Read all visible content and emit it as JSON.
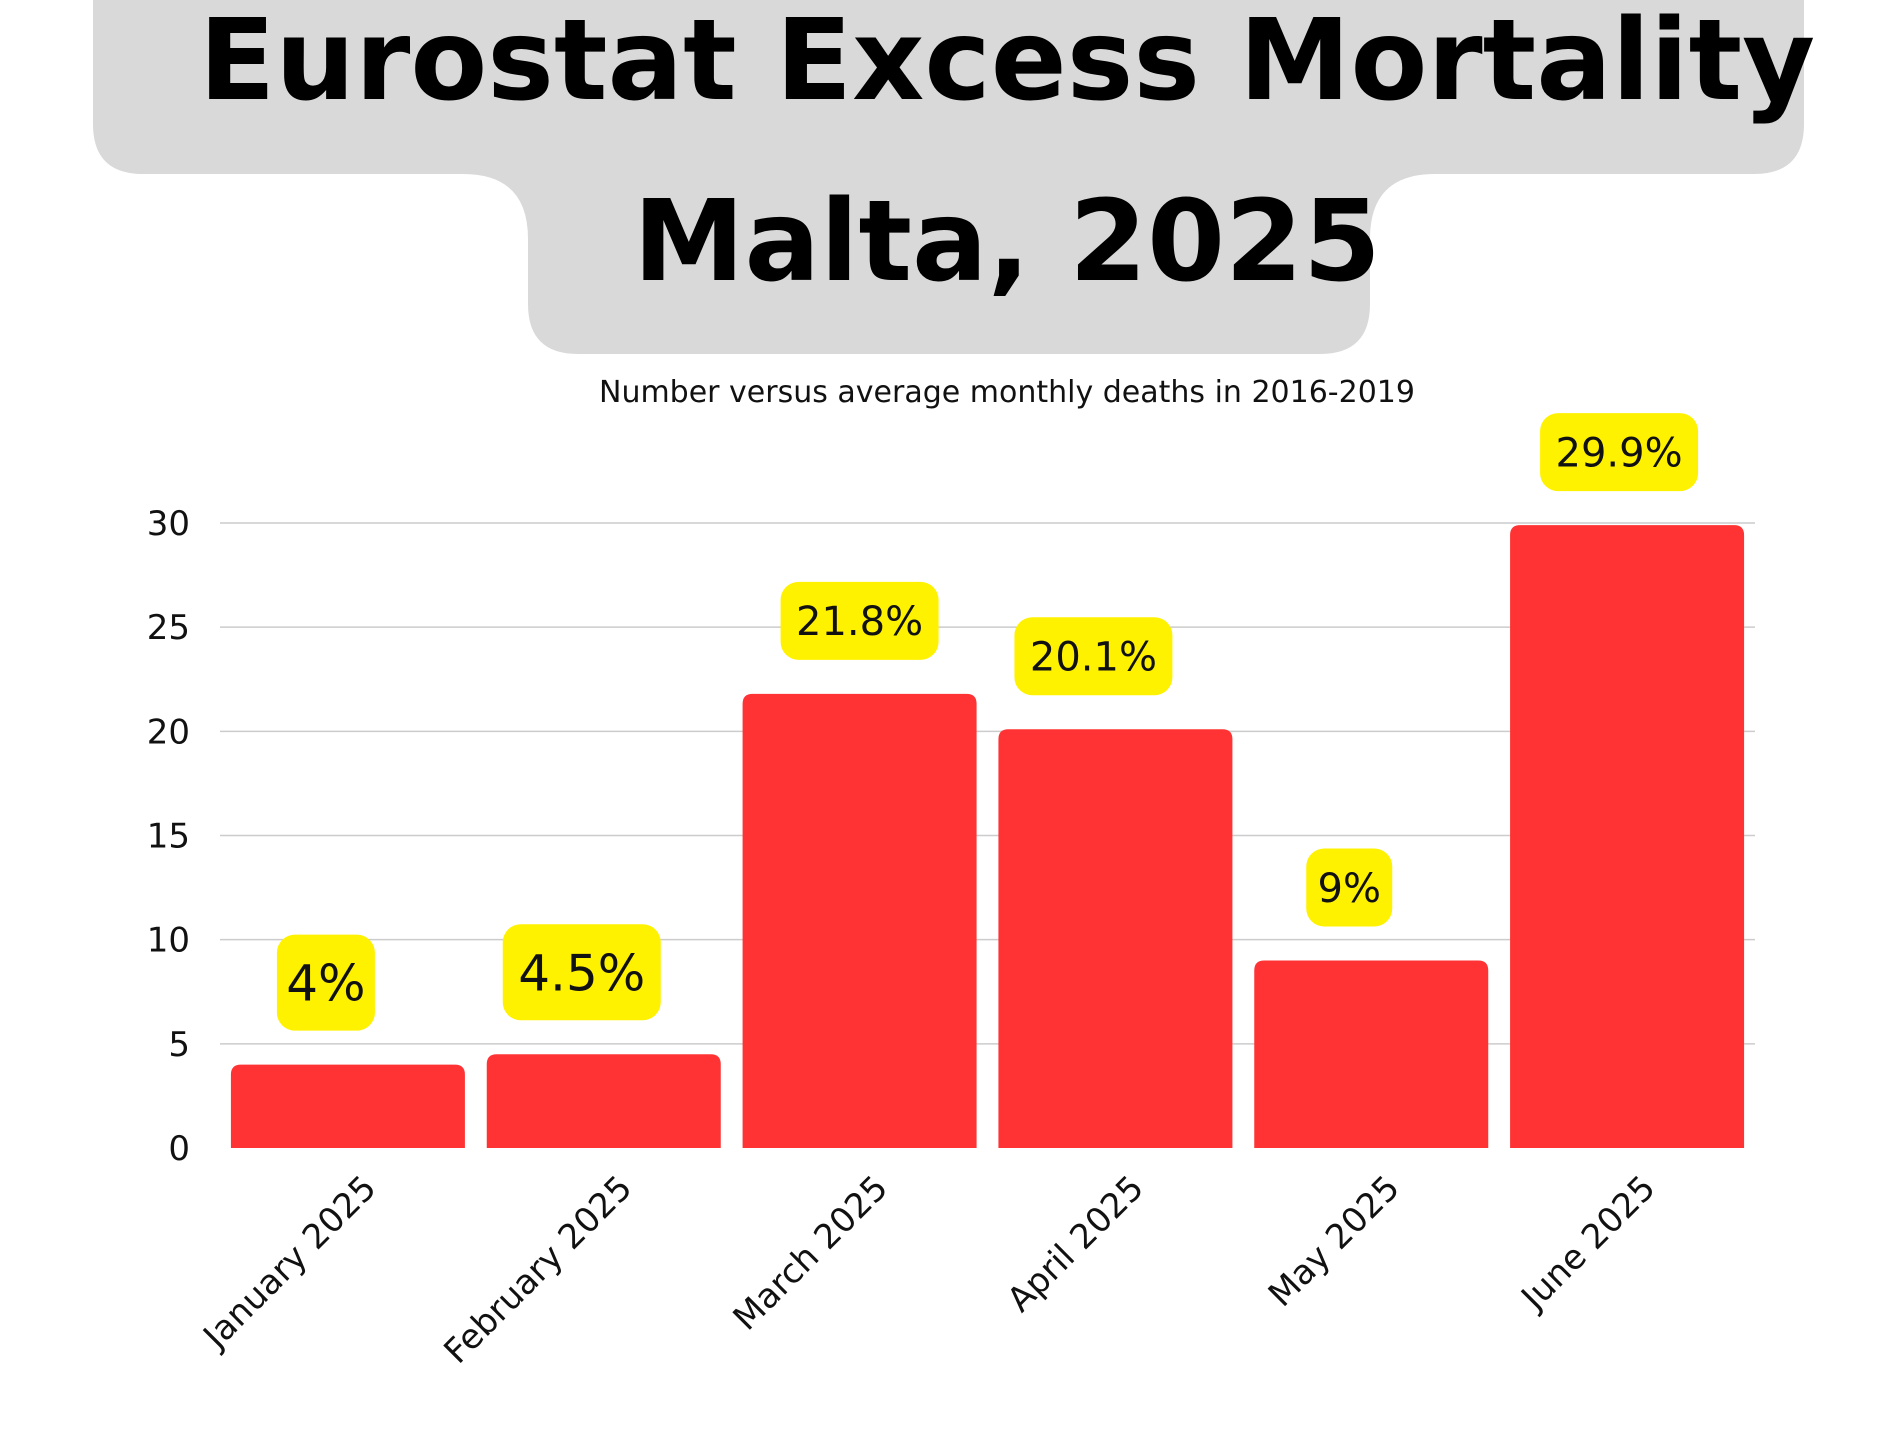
{
  "title": {
    "line1": "Eurostat Excess Mortality",
    "line2": "Malta, 2025"
  },
  "subtitle": "Number versus average monthly deaths in 2016-2019",
  "colors": {
    "bar": "#ff3333",
    "label_background": "#fff200",
    "title_background": "#d9d9d9",
    "grid": "#cccccc"
  },
  "chart_data": {
    "type": "bar",
    "categories": [
      "January 2025",
      "February 2025",
      "March 2025",
      "April 2025",
      "May 2025",
      "June 2025"
    ],
    "values": [
      4,
      4.5,
      21.8,
      20.1,
      9,
      29.9
    ],
    "data_labels": [
      "4%",
      "4.5%",
      "21.8%",
      "20.1%",
      "9%",
      "29.9%"
    ],
    "ylim": [
      0,
      30
    ],
    "yticks": [
      0,
      5,
      10,
      15,
      20,
      25,
      30
    ],
    "xlabel": "",
    "ylabel": "",
    "grid": true,
    "legend": "none"
  }
}
